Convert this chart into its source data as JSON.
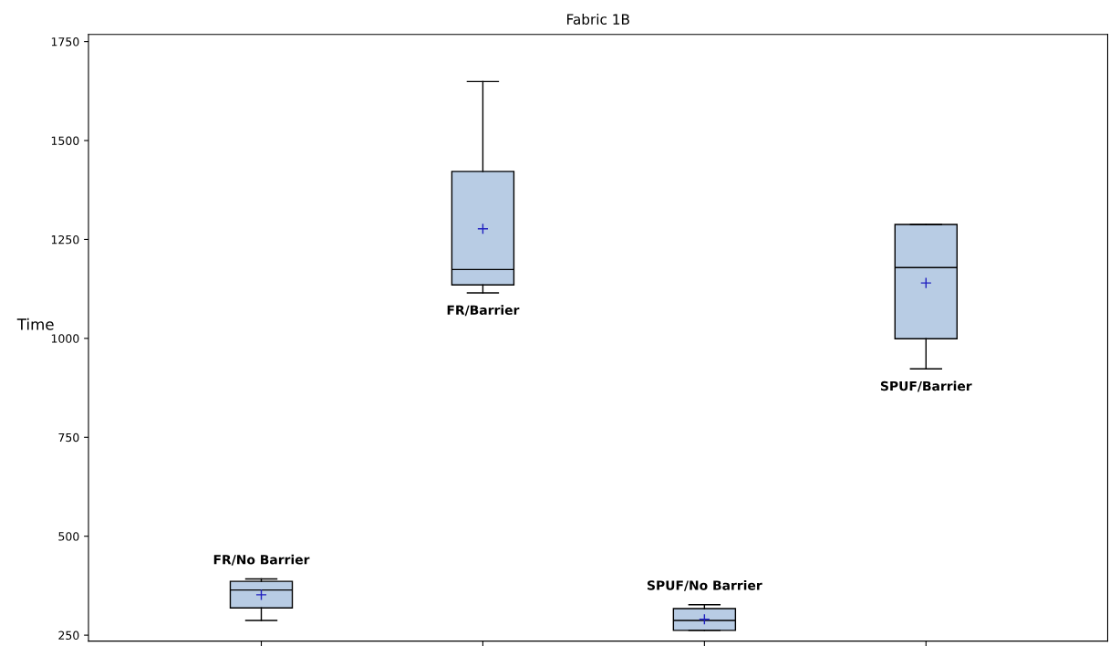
{
  "chart_data": {
    "type": "box",
    "title": "Fabric 1B",
    "ylabel": "Time",
    "categories": [
      "FR/No Barrier",
      "FR/Barrier",
      "SPUF/No Barrier",
      "SPUF/Barrier"
    ],
    "boxes": [
      {
        "low": 287,
        "q1": 319,
        "median": 364,
        "q3": 386,
        "high": 392,
        "mean": 352
      },
      {
        "low": 1115,
        "q1": 1135,
        "median": 1174,
        "q3": 1422,
        "high": 1649,
        "mean": 1277
      },
      {
        "low": 262,
        "q1": 262,
        "median": 287,
        "q3": 317,
        "high": 327,
        "mean": 290
      },
      {
        "low": 923,
        "q1": 999,
        "median": 1179,
        "q3": 1288,
        "high": 1288,
        "mean": 1140
      }
    ],
    "color": "#b8cce4",
    "ylim": [
      235,
      1768
    ],
    "yticks": [
      250,
      500,
      750,
      1000,
      1250,
      1500,
      1750
    ],
    "grid": false
  }
}
